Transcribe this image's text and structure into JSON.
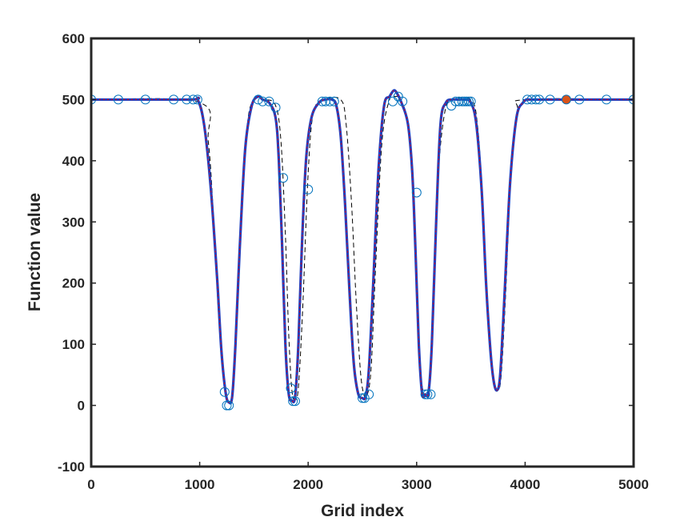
{
  "chart_data": {
    "type": "line",
    "title": "",
    "xlabel": "Grid index",
    "ylabel": "Function value",
    "xlim": [
      0,
      5000
    ],
    "ylim": [
      -100,
      600
    ],
    "xticks": [
      0,
      1000,
      2000,
      3000,
      4000,
      5000
    ],
    "yticks": [
      -100,
      0,
      100,
      200,
      300,
      400,
      500,
      600
    ],
    "xtick_labels": [
      "0",
      "1000",
      "2000",
      "3000",
      "4000",
      "5000"
    ],
    "ytick_labels": [
      "-100",
      "0",
      "100",
      "200",
      "300",
      "400",
      "500",
      "600"
    ],
    "grid": false,
    "legend": "none",
    "series": [
      {
        "style": "thick solid",
        "color": "#1f3fbf",
        "x": [
          0,
          900,
          980,
          1040,
          1100,
          1160,
          1200,
          1240,
          1270,
          1300,
          1330,
          1370,
          1420,
          1480,
          1540,
          1580,
          1640,
          1700,
          1730,
          1760,
          1790,
          1820,
          1850,
          1880,
          1910,
          1940,
          1980,
          2030,
          2100,
          2160,
          2220,
          2260,
          2300,
          2340,
          2380,
          2420,
          2460,
          2500,
          2530,
          2560,
          2600,
          2650,
          2700,
          2750,
          2790,
          2820,
          2860,
          2920,
          2960,
          2990,
          3020,
          3050,
          3080,
          3110,
          3140,
          3180,
          3220,
          3270,
          3330,
          3380,
          3440,
          3500,
          3550,
          3600,
          3640,
          3680,
          3710,
          3740,
          3770,
          3810,
          3860,
          3920,
          3980,
          4030,
          4100,
          5000
        ],
        "y": [
          500,
          500,
          500,
          460,
          360,
          210,
          90,
          20,
          5,
          15,
          100,
          260,
          420,
          490,
          505,
          500,
          495,
          470,
          400,
          260,
          100,
          20,
          8,
          15,
          100,
          250,
          400,
          470,
          495,
          500,
          500,
          490,
          440,
          330,
          190,
          70,
          20,
          12,
          15,
          60,
          200,
          390,
          490,
          505,
          515,
          510,
          495,
          460,
          380,
          250,
          100,
          20,
          18,
          22,
          100,
          300,
          460,
          495,
          500,
          500,
          500,
          495,
          460,
          350,
          200,
          90,
          40,
          25,
          50,
          180,
          360,
          470,
          495,
          500,
          500,
          500
        ]
      },
      {
        "style": "thin solid",
        "color": "#ff0000",
        "x": [
          0,
          900,
          980,
          1040,
          1100,
          1160,
          1200,
          1240,
          1270,
          1300,
          1330,
          1370,
          1420,
          1480,
          1540,
          1580,
          1640,
          1700,
          1730,
          1760,
          1790,
          1820,
          1850,
          1880,
          1910,
          1940,
          1980,
          2030,
          2100,
          2160,
          2220,
          2260,
          2300,
          2340,
          2380,
          2420,
          2460,
          2500,
          2530,
          2560,
          2600,
          2650,
          2700,
          2750,
          2790,
          2820,
          2860,
          2920,
          2960,
          2990,
          3020,
          3050,
          3080,
          3110,
          3140,
          3180,
          3220,
          3270,
          3330,
          3380,
          3440,
          3500,
          3550,
          3600,
          3640,
          3680,
          3710,
          3740,
          3770,
          3810,
          3860,
          3920,
          3980,
          4030,
          4100,
          5000
        ],
        "y": [
          500,
          500,
          500,
          460,
          360,
          210,
          90,
          20,
          5,
          15,
          100,
          260,
          420,
          490,
          505,
          500,
          495,
          470,
          400,
          260,
          100,
          20,
          8,
          15,
          100,
          250,
          400,
          470,
          495,
          500,
          500,
          490,
          440,
          330,
          190,
          70,
          20,
          12,
          15,
          60,
          200,
          390,
          490,
          505,
          515,
          510,
          495,
          460,
          380,
          250,
          100,
          20,
          18,
          22,
          100,
          300,
          460,
          495,
          500,
          500,
          500,
          495,
          460,
          350,
          200,
          90,
          40,
          25,
          50,
          180,
          360,
          470,
          495,
          500,
          500,
          500
        ]
      },
      {
        "style": "dashed",
        "color": "#000000",
        "x": [
          0,
          1000,
          1080,
          1130,
          1170,
          1210,
          1240,
          1270,
          1300,
          1340,
          1390,
          1440,
          1500,
          1600,
          1700,
          1750,
          1790,
          1820,
          1850,
          1880,
          1910,
          1950,
          2000,
          2050,
          2150,
          2300,
          2350,
          2400,
          2440,
          2480,
          2510,
          2540,
          2580,
          2620,
          2680,
          2750,
          2800,
          2850,
          2920,
          2970,
          3010,
          3040,
          3070,
          3100,
          3130,
          3160,
          3200,
          3260,
          3330,
          3500,
          3560,
          3610,
          3650,
          3690,
          3720,
          3750,
          3780,
          3820,
          3870,
          3930,
          4000,
          5000
        ],
        "y": [
          500,
          495,
          430,
          300,
          160,
          60,
          15,
          5,
          20,
          120,
          320,
          460,
          500,
          500,
          490,
          430,
          280,
          120,
          25,
          10,
          30,
          160,
          380,
          480,
          500,
          500,
          460,
          330,
          180,
          60,
          20,
          15,
          60,
          220,
          430,
          500,
          505,
          500,
          460,
          330,
          160,
          50,
          18,
          20,
          60,
          200,
          380,
          480,
          500,
          500,
          460,
          330,
          180,
          70,
          30,
          25,
          50,
          180,
          380,
          480,
          500,
          500
        ]
      },
      {
        "style": "open circles",
        "color": "#0072bd",
        "x": [
          0,
          250,
          500,
          760,
          880,
          940,
          980,
          1230,
          1250,
          1270,
          1540,
          1580,
          1640,
          1700,
          1770,
          1840,
          1860,
          1880,
          2000,
          2130,
          2160,
          2200,
          2240,
          2500,
          2520,
          2560,
          2780,
          2830,
          2870,
          3000,
          3080,
          3100,
          3130,
          3320,
          3360,
          3390,
          3420,
          3440,
          3460,
          3480,
          3500,
          4020,
          4060,
          4100,
          4130,
          4230,
          4500,
          4750,
          5000
        ],
        "y": [
          500,
          500,
          500,
          500,
          500,
          500,
          500,
          22,
          0,
          0,
          500,
          497,
          497,
          487,
          372,
          28,
          7,
          7,
          353,
          497,
          497,
          497,
          497,
          12,
          12,
          18,
          497,
          505,
          497,
          348,
          18,
          18,
          18,
          490,
          497,
          497,
          497,
          497,
          497,
          497,
          497,
          500,
          500,
          500,
          500,
          500,
          500,
          500,
          500
        ]
      },
      {
        "style": "filled circle",
        "color": "#d95319",
        "x": [
          4380
        ],
        "y": [
          500
        ]
      }
    ]
  }
}
